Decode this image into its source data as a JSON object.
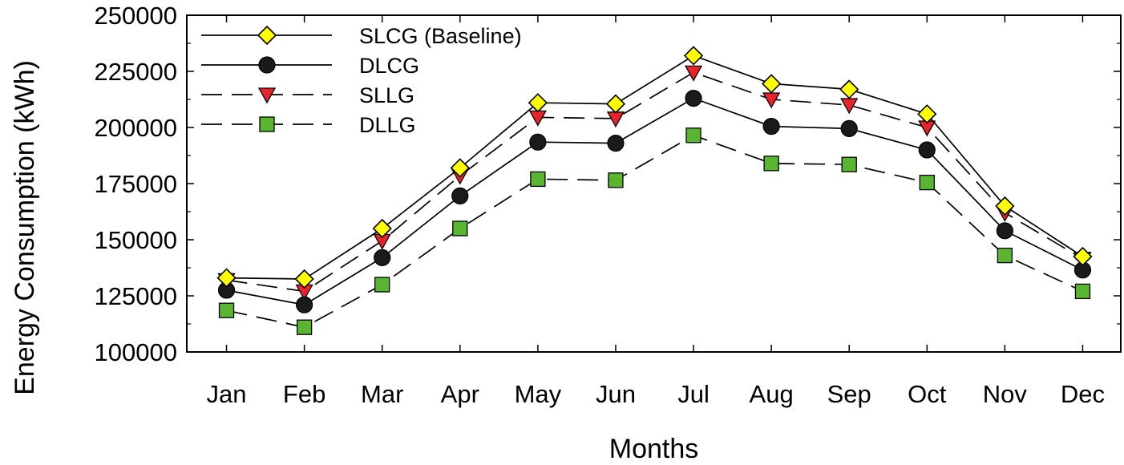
{
  "chart_data": {
    "type": "line",
    "title": "",
    "xlabel": "Months",
    "ylabel": "Energy Consumption (kWh)",
    "ylim": [
      100000,
      250000
    ],
    "yticks": [
      100000,
      125000,
      150000,
      175000,
      200000,
      225000,
      250000
    ],
    "grid": false,
    "legend_position": "top-left",
    "categories": [
      "Jan",
      "Feb",
      "Mar",
      "Apr",
      "May",
      "Jun",
      "Jul",
      "Aug",
      "Sep",
      "Oct",
      "Nov",
      "Dec"
    ],
    "series": [
      {
        "name": "SLCG (Baseline)",
        "line_style": "solid",
        "marker": "diamond",
        "color": "#ffff00",
        "values": [
          133000,
          132500,
          155000,
          182000,
          211000,
          210500,
          232000,
          219500,
          217000,
          206000,
          165000,
          142500
        ]
      },
      {
        "name": "DLCG",
        "line_style": "solid",
        "marker": "circle",
        "color": "#1a1a1a",
        "values": [
          127500,
          121000,
          142000,
          169500,
          193500,
          193000,
          213000,
          200500,
          199500,
          190000,
          154000,
          136500
        ]
      },
      {
        "name": "SLLG",
        "line_style": "dashed",
        "marker": "triangle-down",
        "color": "#e8232a",
        "values": [
          132000,
          127000,
          149500,
          178500,
          204500,
          204000,
          224500,
          212500,
          210000,
          200000,
          162000,
          141500
        ]
      },
      {
        "name": "DLLG",
        "line_style": "dashed",
        "marker": "square",
        "color": "#5ab531",
        "values": [
          118500,
          111000,
          130000,
          155000,
          177000,
          176500,
          196500,
          184000,
          183500,
          175500,
          143000,
          127000
        ]
      }
    ]
  }
}
